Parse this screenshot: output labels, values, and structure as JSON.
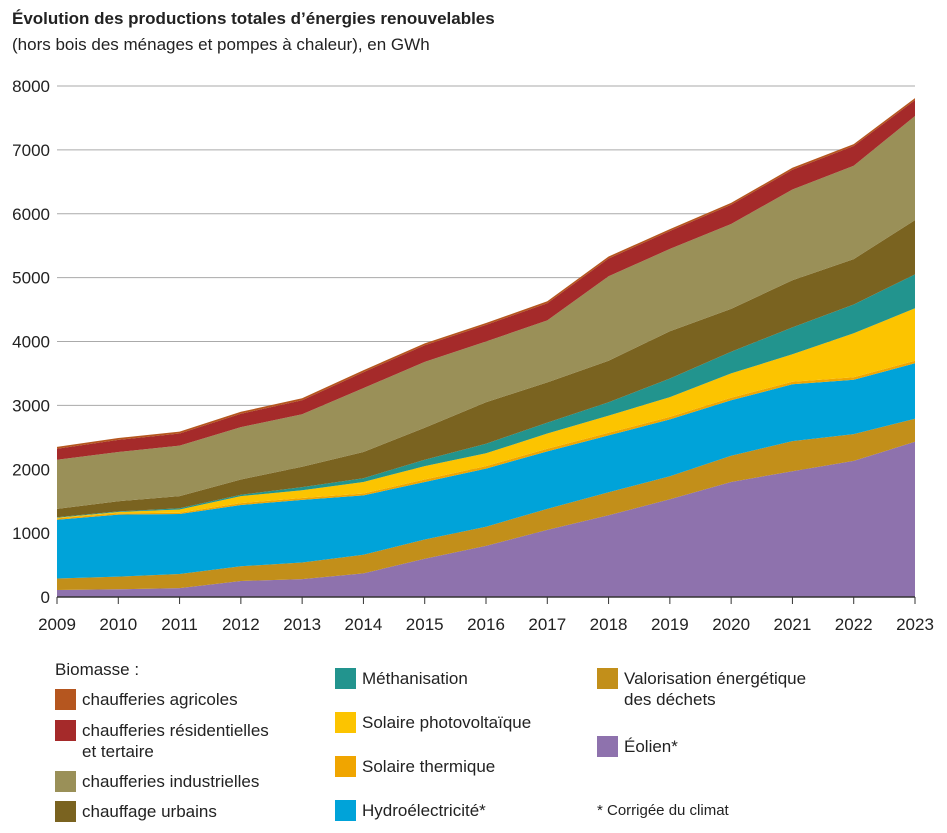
{
  "chart_data": {
    "type": "stacked_area",
    "title": "Évolution des productions totales d’énergies renouvelables",
    "subtitle": "(hors bois des ménages et pompes à chaleur), en GWh",
    "legend_group": "Biomasse :",
    "footnote": "* Corrigée du climat",
    "x": [
      2009,
      2010,
      2011,
      2012,
      2013,
      2014,
      2015,
      2016,
      2017,
      2018,
      2019,
      2020,
      2021,
      2022,
      2023
    ],
    "xlim": [
      2009,
      2023
    ],
    "xticks": [
      2009,
      2010,
      2011,
      2012,
      2013,
      2014,
      2015,
      2016,
      2017,
      2018,
      2019,
      2020,
      2021,
      2022,
      2023
    ],
    "ylim": [
      0,
      8000
    ],
    "yticks": [
      0,
      1000,
      2000,
      3000,
      4000,
      5000,
      6000,
      7000,
      8000
    ],
    "grid": true,
    "series": [
      {
        "name": "Éolien*",
        "color": "#8e72ad",
        "values": [
          110,
          120,
          140,
          250,
          280,
          370,
          600,
          800,
          1050,
          1280,
          1530,
          1800,
          1970,
          2130,
          2430
        ]
      },
      {
        "name": "Valorisation énergétique des déchets",
        "color": "#c28f1a",
        "values": [
          180,
          200,
          220,
          230,
          260,
          290,
          300,
          300,
          330,
          360,
          360,
          410,
          470,
          420,
          360
        ]
      },
      {
        "name": "Hydroélectricité*",
        "color": "#00a3d9",
        "values": [
          920,
          970,
          940,
          960,
          980,
          930,
          900,
          910,
          900,
          890,
          890,
          870,
          890,
          850,
          870
        ]
      },
      {
        "name": "Solaire thermique",
        "color": "#f0a500",
        "values": [
          20,
          20,
          20,
          30,
          30,
          30,
          40,
          40,
          40,
          40,
          40,
          40,
          40,
          40,
          40
        ]
      },
      {
        "name": "Solaire photovoltaïque",
        "color": "#fcc400",
        "values": [
          10,
          20,
          50,
          110,
          120,
          180,
          210,
          200,
          240,
          270,
          310,
          380,
          430,
          690,
          820
        ]
      },
      {
        "name": "Méthanisation",
        "color": "#22948e",
        "values": [
          10,
          10,
          20,
          20,
          50,
          60,
          100,
          150,
          170,
          210,
          290,
          340,
          420,
          450,
          530
        ]
      },
      {
        "name": "chauffage urbains",
        "color": "#7a6320",
        "values": [
          130,
          160,
          190,
          240,
          320,
          410,
          500,
          650,
          630,
          650,
          740,
          670,
          740,
          710,
          850
        ]
      },
      {
        "name": "chaufferies industrielles",
        "color": "#9a9058",
        "values": [
          770,
          770,
          790,
          820,
          820,
          1000,
          1030,
          950,
          970,
          1320,
          1290,
          1330,
          1420,
          1460,
          1630
        ]
      },
      {
        "name": "chaufferies résidentielles et tertaire",
        "color": "#a52a2a",
        "values": [
          170,
          190,
          190,
          210,
          220,
          250,
          260,
          260,
          270,
          280,
          280,
          300,
          310,
          310,
          250
        ]
      },
      {
        "name": "chaufferies agricoles",
        "color": "#b5561f",
        "values": [
          30,
          30,
          30,
          30,
          30,
          30,
          30,
          30,
          30,
          30,
          30,
          30,
          30,
          30,
          30
        ]
      }
    ]
  }
}
